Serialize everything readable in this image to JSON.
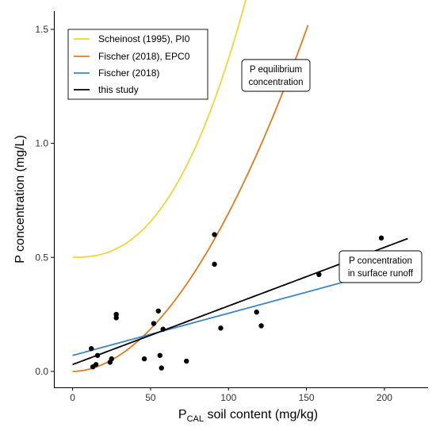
{
  "chart_data": {
    "type": "scatter",
    "title": "",
    "xlabel": {
      "main": "P",
      "subscript": "CAL",
      "rest": " soil content (mg/kg)"
    },
    "ylabel": "P concentration (mg/L)",
    "xlim": [
      -12,
      228
    ],
    "ylim": [
      -0.07,
      1.58
    ],
    "x_ticks": [
      0,
      50,
      100,
      150,
      200
    ],
    "y_ticks": [
      0.0,
      0.5,
      1.0,
      1.5
    ],
    "y_tick_labels": [
      "0.0",
      "0.5",
      "1.0",
      "1.5"
    ],
    "grid": false,
    "legend_position": "top-left",
    "points": {
      "x": [
        12,
        13,
        15,
        16,
        24,
        25,
        28,
        28,
        46,
        52,
        55,
        56,
        57,
        58,
        73,
        91,
        91,
        95,
        118,
        121,
        158,
        198
      ],
      "y": [
        0.1,
        0.02,
        0.03,
        0.07,
        0.04,
        0.055,
        0.25,
        0.235,
        0.055,
        0.21,
        0.265,
        0.07,
        0.015,
        0.185,
        0.045,
        0.6,
        0.47,
        0.19,
        0.26,
        0.2,
        0.425,
        0.585
      ],
      "color": "#000000"
    },
    "series": [
      {
        "name": "Scheinost (1995), PI0",
        "color": "#f2d43c",
        "model": "power",
        "a": 1e-05,
        "p": 0.5,
        "b": 2.47,
        "x_end": 126
      },
      {
        "name": "Fischer (2018), EPC0",
        "color": "#e07b1f",
        "model": "power",
        "a": 0.00011,
        "p": 0,
        "b": 1.9,
        "x_end": 151
      },
      {
        "name": "Fischer (2018)",
        "color": "#3a86c8",
        "model": "linear",
        "intercept": 0.07,
        "slope": 0.00185,
        "x_end": 200
      },
      {
        "name": "this study",
        "color": "#000000",
        "model": "linear",
        "intercept": 0.03,
        "slope": 0.00257,
        "x_end": 215
      }
    ],
    "annotations": [
      {
        "lines": [
          "P equilibrium",
          "concentration"
        ]
      },
      {
        "lines": [
          "P concentration",
          "in surface runoff"
        ]
      }
    ]
  }
}
